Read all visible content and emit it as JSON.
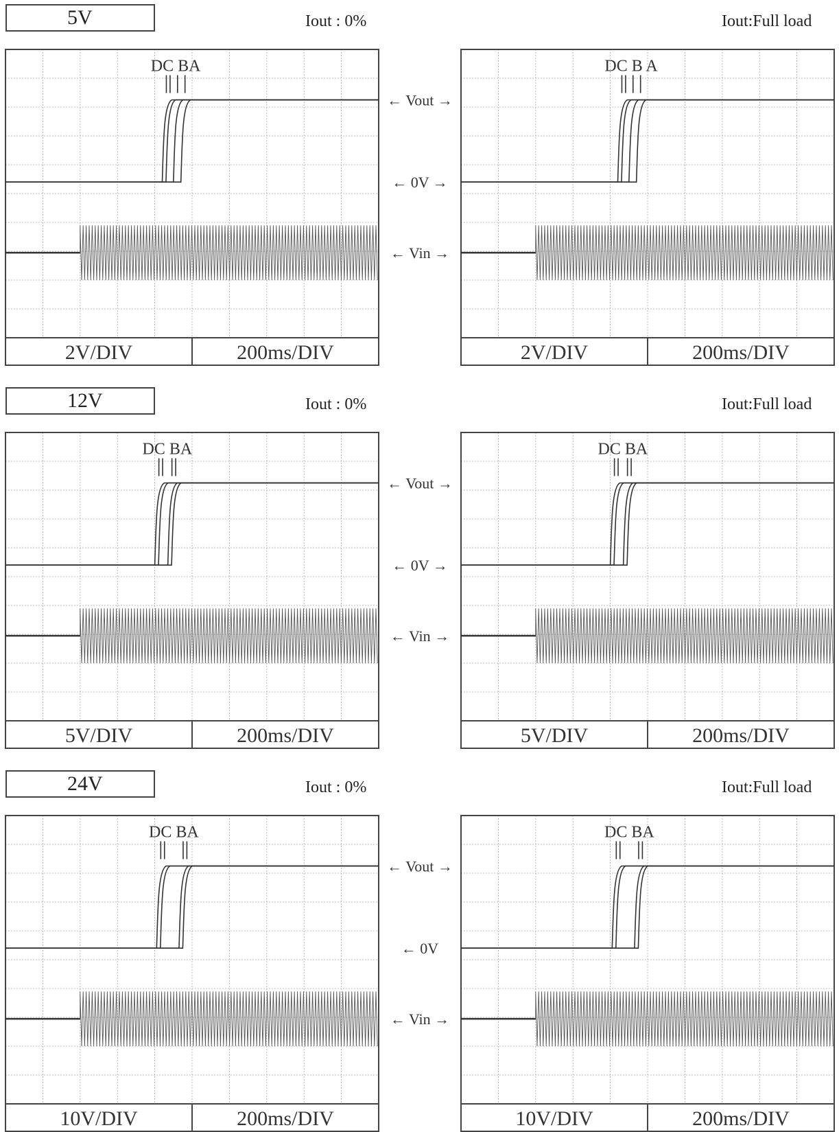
{
  "sections": [
    {
      "label": "5V",
      "conditions": [
        "Iout : 0%",
        "Iout:Full load"
      ],
      "markers": [
        "DC BA",
        "DC B A"
      ],
      "volt_div": "2V/DIV",
      "time_div": "200ms/DIV"
    },
    {
      "label": "12V",
      "conditions": [
        "Iout : 0%",
        "Iout:Full load"
      ],
      "markers": [
        "DC BA",
        "DC BA"
      ],
      "volt_div": "5V/DIV",
      "time_div": "200ms/DIV"
    },
    {
      "label": "24V",
      "conditions": [
        "Iout : 0%",
        "Iout:Full load"
      ],
      "markers": [
        "DC BA",
        "DC BA"
      ],
      "volt_div": "10V/DIV",
      "time_div": "200ms/DIV"
    }
  ],
  "channel_labels": {
    "vout": "← Vout →",
    "zero": "← 0V →",
    "zero_last": "← 0V",
    "vin": "← Vin →"
  },
  "colors": {
    "trace": "#333333",
    "grid": "#bbbbbb",
    "frame": "#444444"
  },
  "chart_data": [
    {
      "type": "line",
      "section": "5V",
      "condition": "Iout : 0%",
      "x_unit": "ms",
      "y_unit": "V",
      "xlim": [
        0,
        2000
      ],
      "ylim": [
        -10,
        10
      ],
      "vin_on_ms": 400,
      "vout_level_v": 5,
      "rise_ms": {
        "D": 840,
        "C": 860,
        "B": 900,
        "A": 940
      }
    },
    {
      "type": "line",
      "section": "5V",
      "condition": "Iout:Full load",
      "x_unit": "ms",
      "y_unit": "V",
      "xlim": [
        0,
        2000
      ],
      "ylim": [
        -10,
        10
      ],
      "vin_on_ms": 400,
      "vout_level_v": 5,
      "rise_ms": {
        "D": 840,
        "C": 860,
        "B": 900,
        "A": 940
      }
    },
    {
      "type": "line",
      "section": "12V",
      "condition": "Iout : 0%",
      "x_unit": "ms",
      "y_unit": "V",
      "xlim": [
        0,
        2000
      ],
      "ylim": [
        -25,
        25
      ],
      "vin_on_ms": 400,
      "vout_level_v": 12,
      "rise_ms": {
        "D": 800,
        "C": 820,
        "B": 870,
        "A": 890
      }
    },
    {
      "type": "line",
      "section": "12V",
      "condition": "Iout:Full load",
      "x_unit": "ms",
      "y_unit": "V",
      "xlim": [
        0,
        2000
      ],
      "ylim": [
        -25,
        25
      ],
      "vin_on_ms": 400,
      "vout_level_v": 12,
      "rise_ms": {
        "D": 800,
        "C": 820,
        "B": 870,
        "A": 890
      }
    },
    {
      "type": "line",
      "section": "24V",
      "condition": "Iout : 0%",
      "x_unit": "ms",
      "y_unit": "V",
      "xlim": [
        0,
        2000
      ],
      "ylim": [
        -50,
        50
      ],
      "vin_on_ms": 400,
      "vout_level_v": 24,
      "rise_ms": {
        "D": 810,
        "C": 830,
        "B": 930,
        "A": 950
      }
    },
    {
      "type": "line",
      "section": "24V",
      "condition": "Iout:Full load",
      "x_unit": "ms",
      "y_unit": "V",
      "xlim": [
        0,
        2000
      ],
      "ylim": [
        -50,
        50
      ],
      "vin_on_ms": 400,
      "vout_level_v": 24,
      "rise_ms": {
        "D": 810,
        "C": 830,
        "B": 930,
        "A": 950
      }
    }
  ]
}
